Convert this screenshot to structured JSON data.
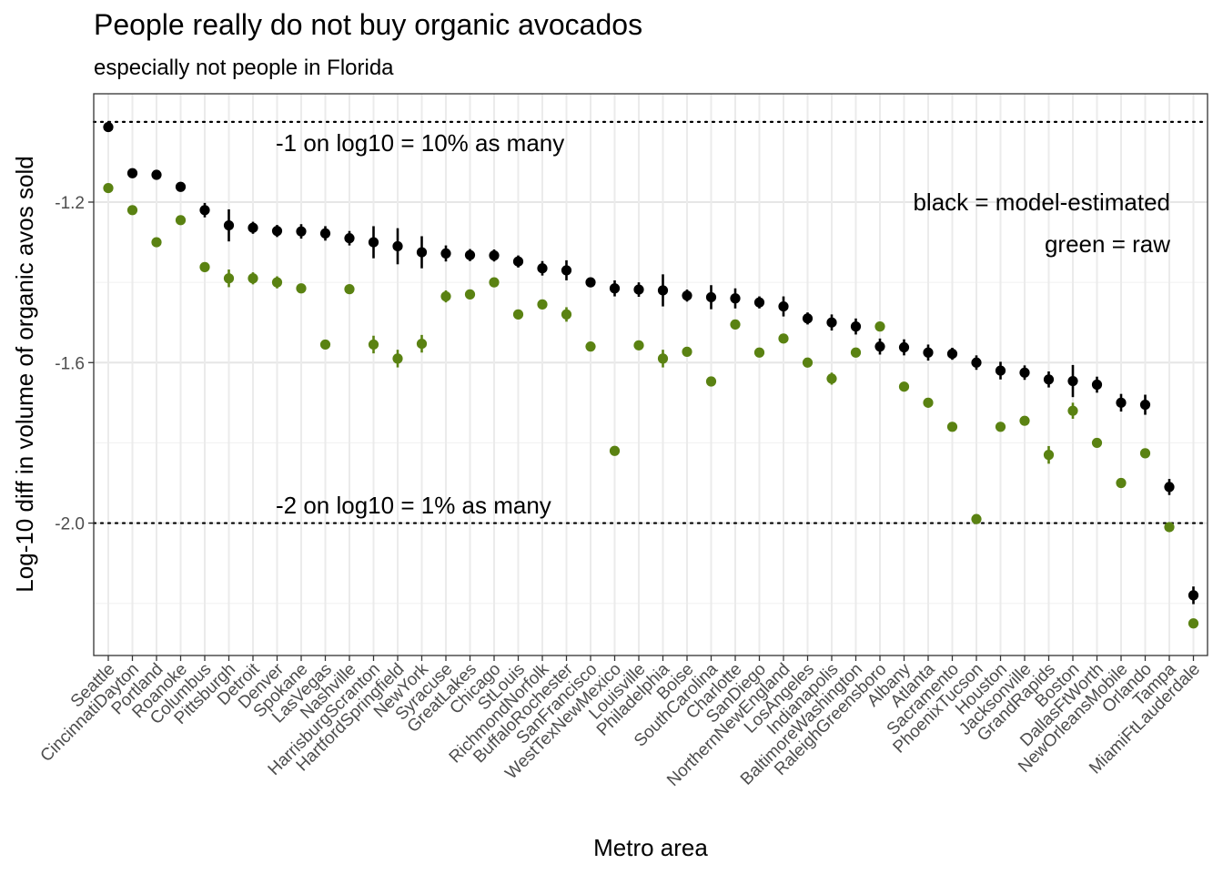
{
  "chart_data": {
    "type": "scatter",
    "title": "People really do not buy organic avocados",
    "subtitle": "especially not people in Florida",
    "xlabel": "Metro area",
    "ylabel": "Log-10 diff in volume of organic avos sold",
    "ylim": [
      -2.33,
      -0.93
    ],
    "yticks": [
      -1.2,
      -1.6,
      -2.0
    ],
    "ytick_labels": [
      "-1.2",
      "-1.6",
      "-2.0"
    ],
    "grid": true,
    "reference_lines": [
      -1.0,
      -2.0
    ],
    "annotations": {
      "ref_upper": "-1 on log10 = 10% as many",
      "ref_lower": "-2 on log10 = 1% as many",
      "legend_black": "black = model-estimated",
      "legend_green": "green = raw"
    },
    "colors": {
      "model": "#000000",
      "raw": "#5a8212"
    },
    "categories": [
      "Seattle",
      "CincinnatiDayton",
      "Portland",
      "Roanoke",
      "Columbus",
      "Pittsburgh",
      "Detroit",
      "Denver",
      "Spokane",
      "LasVegas",
      "Nashville",
      "HarrisburgScranton",
      "HartfordSpringfield",
      "NewYork",
      "Syracuse",
      "GreatLakes",
      "Chicago",
      "StLouis",
      "RichmondNorfolk",
      "BuffaloRochester",
      "SanFrancisco",
      "WestTexNewMexico",
      "Louisville",
      "Philadelphia",
      "Boise",
      "SouthCarolina",
      "Charlotte",
      "SanDiego",
      "NorthernNewEngland",
      "LosAngeles",
      "Indianapolis",
      "BaltimoreWashington",
      "RaleighGreensboro",
      "Albany",
      "Atlanta",
      "Sacramento",
      "PhoenixTucson",
      "Houston",
      "Jacksonville",
      "GrandRapids",
      "Boston",
      "DallasFtWorth",
      "NewOrleansMobile",
      "Orlando",
      "Tampa",
      "MiamiFtLauderdale"
    ],
    "series": [
      {
        "values": [
          -1.013,
          -1.128,
          -1.132,
          -1.162,
          -1.22,
          -1.258,
          -1.264,
          -1.272,
          -1.273,
          -1.278,
          -1.29,
          -1.3,
          -1.31,
          -1.325,
          -1.328,
          -1.332,
          -1.333,
          -1.348,
          -1.365,
          -1.37,
          -1.4,
          -1.415,
          -1.418,
          -1.42,
          -1.433,
          -1.437,
          -1.44,
          -1.45,
          -1.46,
          -1.49,
          -1.5,
          -1.51,
          -1.56,
          -1.562,
          -1.575,
          -1.578,
          -1.6,
          -1.62,
          -1.625,
          -1.642,
          -1.646,
          -1.655,
          -1.7,
          -1.705,
          -1.91,
          -2.18
        ],
        "errors": [
          0.012,
          0.01,
          0.01,
          0.01,
          0.018,
          0.04,
          0.015,
          0.015,
          0.018,
          0.018,
          0.018,
          0.04,
          0.045,
          0.04,
          0.02,
          0.015,
          0.015,
          0.015,
          0.018,
          0.025,
          0.012,
          0.02,
          0.018,
          0.04,
          0.015,
          0.03,
          0.025,
          0.015,
          0.025,
          0.015,
          0.02,
          0.02,
          0.02,
          0.02,
          0.02,
          0.015,
          0.018,
          0.022,
          0.018,
          0.02,
          0.04,
          0.02,
          0.022,
          0.025,
          0.02,
          0.022
        ]
      },
      {
        "values": [
          -1.165,
          -1.22,
          -1.3,
          -1.245,
          -1.362,
          -1.39,
          -1.39,
          -1.4,
          -1.415,
          -1.555,
          -1.417,
          -1.555,
          -1.59,
          -1.553,
          -1.435,
          -1.43,
          -1.4,
          -1.48,
          -1.455,
          -1.48,
          -1.56,
          -1.82,
          -1.557,
          -1.59,
          -1.573,
          -1.647,
          -1.505,
          -1.575,
          -1.54,
          -1.6,
          -1.64,
          -1.575,
          -1.51,
          -1.66,
          -1.7,
          -1.76,
          -1.99,
          -1.76,
          -1.745,
          -1.83,
          -1.72,
          -1.8,
          -1.9,
          -1.826,
          -2.01,
          -2.25
        ],
        "errors": [
          0.01,
          0.008,
          0.008,
          0.008,
          0.012,
          0.022,
          0.015,
          0.015,
          0.008,
          0.008,
          0.008,
          0.022,
          0.022,
          0.022,
          0.015,
          0.008,
          0.008,
          0.012,
          0.008,
          0.018,
          0.008,
          0.008,
          0.012,
          0.022,
          0.008,
          0.012,
          0.012,
          0.008,
          0.012,
          0.008,
          0.015,
          0.012,
          0.008,
          0.012,
          0.012,
          0.008,
          0.008,
          0.012,
          0.008,
          0.022,
          0.02,
          0.008,
          0.012,
          0.008,
          0.008,
          0.012
        ]
      }
    ]
  }
}
